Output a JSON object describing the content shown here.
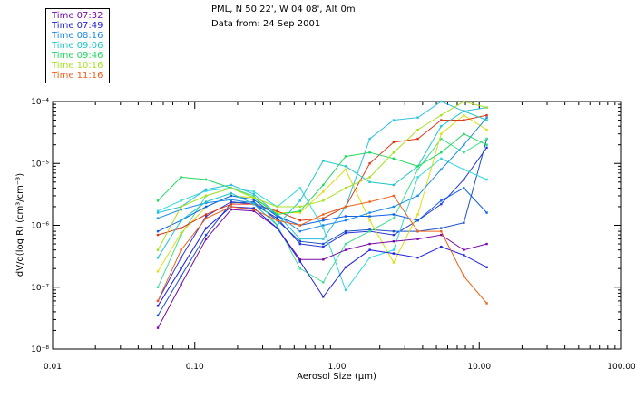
{
  "header": {
    "location": "PML, N 50 22', W 04 08', Alt 0m",
    "date": "Data from: 24 Sep 2001"
  },
  "chart_data": {
    "type": "line",
    "x_scale": "log",
    "y_scale": "log",
    "xlabel": "Aerosol Size (μm)",
    "ylabel": "dV/d(log R) (cm³/cm⁻³)",
    "xlim": [
      0.01,
      100
    ],
    "ylim": [
      1e-08,
      0.0001
    ],
    "x_tick_labels": [
      "0.01",
      "0.10",
      "1.00",
      "10.00",
      "100.00"
    ],
    "y_tick_labels": [
      "10⁻⁸",
      "10⁻⁷",
      "10⁻⁶",
      "10⁻⁵",
      "10⁻⁴"
    ],
    "x": [
      0.055,
      0.08,
      0.12,
      0.18,
      0.26,
      0.38,
      0.55,
      0.8,
      1.15,
      1.7,
      2.5,
      3.7,
      5.4,
      7.8,
      11.3
    ],
    "series": [
      {
        "name": "Time 07:32",
        "color": "#7a0aa8",
        "values": [
          2.2e-08,
          1.1e-07,
          6e-07,
          1.8e-06,
          1.7e-06,
          9e-07,
          2.8e-07,
          2.8e-07,
          4e-07,
          5e-07,
          5.5e-07,
          6e-07,
          7e-07,
          4e-07,
          5e-07
        ]
      },
      {
        "name": "Time 07:49",
        "color": "#2020e0",
        "values": [
          5e-08,
          2e-07,
          9e-07,
          2e-06,
          1.9e-06,
          9e-07,
          2.6e-07,
          7e-08,
          2.1e-07,
          4e-07,
          3.5e-07,
          3e-07,
          4.5e-07,
          3.3e-07,
          2.1e-07
        ]
      },
      {
        "name": "Time 08:16",
        "color": "#1a8ae8",
        "values": [
          1.3e-06,
          1.8e-06,
          2.3e-06,
          2.6e-06,
          2.3e-06,
          1.5e-06,
          8e-07,
          1e-06,
          1.2e-06,
          1.6e-06,
          2e-06,
          3e-06,
          8e-06,
          2e-05,
          5.5e-05
        ]
      },
      {
        "name": "Time 09:06",
        "color": "#20c8c8",
        "values": [
          3e-07,
          1.2e-06,
          2.4e-06,
          3.3e-06,
          2.2e-06,
          1e-06,
          2.5e-06,
          1.1e-05,
          9e-06,
          5e-06,
          4.5e-06,
          9e-06,
          4e-05,
          7e-05,
          5e-05
        ]
      },
      {
        "name": "Time 09:46",
        "color": "#20d860",
        "values": [
          2.5e-06,
          6e-06,
          5.5e-06,
          4e-06,
          2.8e-06,
          1.5e-06,
          1.7e-06,
          4.5e-06,
          1.3e-05,
          1.5e-05,
          1.2e-05,
          9e-06,
          1.5e-05,
          3e-05,
          2e-05
        ]
      },
      {
        "name": "Time 10:16",
        "color": "#a8e020",
        "values": [
          4e-07,
          2e-06,
          3e-06,
          4e-06,
          2.8e-06,
          2e-06,
          2e-06,
          2.5e-06,
          4e-06,
          6e-06,
          1.5e-05,
          3.5e-05,
          6e-05,
          0.0001,
          8e-05
        ]
      },
      {
        "name": "Time 11:16",
        "color": "#f06018",
        "values": [
          6e-08,
          4e-07,
          1.3e-06,
          2e-06,
          1.8e-06,
          1.2e-06,
          1e-06,
          1.5e-06,
          2e-06,
          2.4e-06,
          3e-06,
          8e-07,
          8e-07,
          1.5e-07,
          5.5e-08
        ]
      }
    ],
    "extra_traces": [
      {
        "color": "#2838d8",
        "values": [
          6e-08,
          3e-07,
          1.4e-06,
          2.4e-06,
          2.2e-06,
          1.3e-06,
          5e-07,
          4.5e-07,
          7.5e-07,
          8e-07,
          7e-07,
          1.2e-06,
          2.2e-06,
          5.5e-06,
          1.8e-05
        ]
      },
      {
        "color": "#1850c8",
        "values": [
          3.5e-08,
          1.5e-07,
          7e-07,
          2.3e-06,
          2.4e-06,
          1.2e-06,
          5.5e-07,
          5e-07,
          8e-07,
          8.5e-07,
          8e-07,
          8e-07,
          9e-07,
          1.1e-06,
          2.5e-05
        ]
      },
      {
        "color": "#30d8e0",
        "values": [
          1.7e-06,
          2.5e-06,
          3.6e-06,
          4e-06,
          3.5e-06,
          2e-06,
          4e-06,
          9e-07,
          9e-08,
          3e-07,
          4e-07,
          6e-06,
          1.2e-05,
          8e-06,
          5.5e-06
        ]
      },
      {
        "color": "#40e090",
        "values": [
          1e-07,
          7e-07,
          3e-06,
          4e-06,
          3e-06,
          1e-06,
          2e-07,
          1.2e-07,
          5e-07,
          8e-07,
          1.3e-06,
          8e-06,
          2.5e-05,
          1.5e-05,
          2.5e-05
        ]
      },
      {
        "color": "#d8e010",
        "values": [
          1.8e-07,
          7.5e-07,
          2e-06,
          3e-06,
          2.8e-06,
          1.6e-06,
          1.6e-06,
          3.5e-06,
          8e-06,
          1.2e-06,
          2.5e-07,
          1.5e-06,
          3e-05,
          6e-05,
          3.5e-05
        ]
      },
      {
        "color": "#e03818",
        "values": [
          7e-07,
          9e-07,
          1.5e-06,
          2.2e-06,
          2.2e-06,
          1.7e-06,
          1.2e-06,
          1.3e-06,
          2e-06,
          1e-05,
          2.2e-05,
          2.5e-05,
          5e-05,
          5e-05,
          6e-05
        ]
      },
      {
        "color": "#2ec0e0",
        "values": [
          1.6e-06,
          2e-06,
          3.8e-06,
          4.5e-06,
          3.2e-06,
          1.5e-06,
          6e-07,
          6e-07,
          2e-06,
          2.5e-05,
          5e-05,
          5.5e-05,
          0.0001,
          7e-05,
          8e-05
        ]
      },
      {
        "color": "#1060e8",
        "values": [
          8e-07,
          1.2e-06,
          2e-06,
          3e-06,
          2.6e-06,
          1.4e-06,
          1e-06,
          1.2e-06,
          1.4e-06,
          1.4e-06,
          1.5e-06,
          1.2e-06,
          2.5e-06,
          4e-06,
          1.6e-06
        ]
      }
    ]
  },
  "legend": [
    {
      "label": "Time 07:32",
      "color": "#7a0aa8"
    },
    {
      "label": "Time 07:49",
      "color": "#2020e0"
    },
    {
      "label": "Time 08:16",
      "color": "#1a8ae8"
    },
    {
      "label": "Time 09:06",
      "color": "#20c8c8"
    },
    {
      "label": "Time 09:46",
      "color": "#20d860"
    },
    {
      "label": "Time 10:16",
      "color": "#a8e020"
    },
    {
      "label": "Time 11:16",
      "color": "#f06018"
    }
  ]
}
